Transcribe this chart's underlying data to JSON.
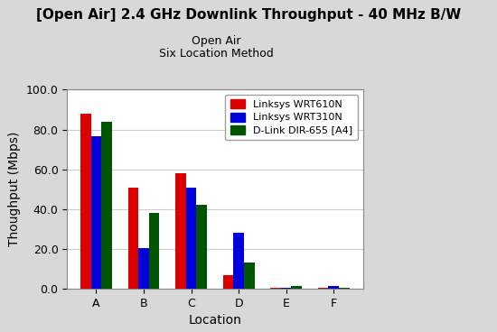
{
  "title": "[Open Air] 2.4 GHz Downlink Throughput - 40 MHz B/W",
  "subtitle_line1": "Open Air",
  "subtitle_line2": "Six Location Method",
  "xlabel": "Location",
  "ylabel": "Thoughput (Mbps)",
  "categories": [
    "A",
    "B",
    "C",
    "D",
    "E",
    "F"
  ],
  "series": [
    {
      "label": "Linksys WRT610N",
      "color": "#dd0000",
      "values": [
        88.0,
        51.0,
        58.0,
        7.0,
        0.3,
        0.3
      ]
    },
    {
      "label": "Linksys WRT310N",
      "color": "#0000dd",
      "values": [
        76.5,
        20.5,
        51.0,
        28.0,
        0.5,
        1.5
      ]
    },
    {
      "label": "D-Link DIR-655 [A4]",
      "color": "#005500",
      "values": [
        84.0,
        38.0,
        42.0,
        13.0,
        1.5,
        0.7
      ]
    }
  ],
  "ylim": [
    0,
    100
  ],
  "yticks": [
    0.0,
    20.0,
    40.0,
    60.0,
    80.0,
    100.0
  ],
  "outer_bg_color": "#d8d8d8",
  "plot_bg_color": "#ffffff",
  "title_fontsize": 11,
  "subtitle_fontsize": 9,
  "axis_label_fontsize": 10,
  "tick_fontsize": 9,
  "legend_fontsize": 8,
  "bar_width": 0.22,
  "grid_color": "#cccccc"
}
